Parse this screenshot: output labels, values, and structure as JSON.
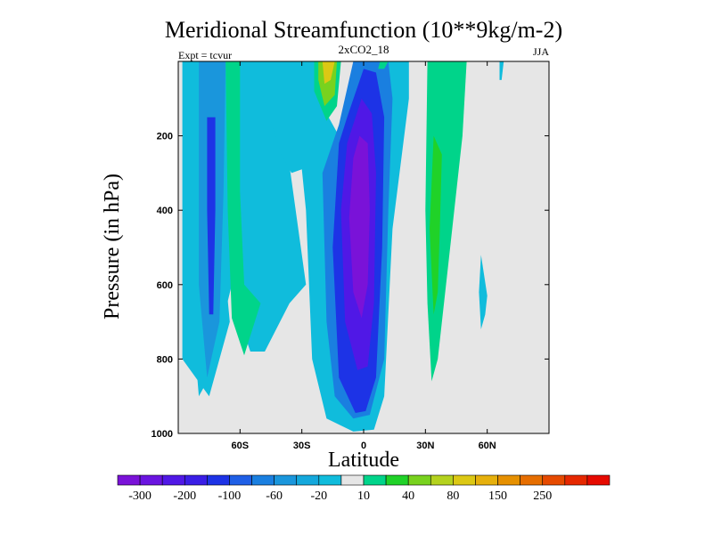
{
  "chart_data": {
    "type": "contour",
    "title": "Meridional Streamfunction (10**9kg/m-2)",
    "subtitle_center": "2xCO2_18",
    "subtitle_left": "Expt = tcvur",
    "subtitle_right": "JJA",
    "xlabel": "Latitude",
    "ylabel": "Pressure (in hPa)",
    "xlim": [
      -90,
      90
    ],
    "ylim": [
      1000,
      0
    ],
    "x_ticks": [
      {
        "value": -60,
        "label": "60S"
      },
      {
        "value": -30,
        "label": "30S"
      },
      {
        "value": 0,
        "label": "0"
      },
      {
        "value": 30,
        "label": "30N"
      },
      {
        "value": 60,
        "label": "60N"
      }
    ],
    "y_ticks": [
      {
        "value": 200,
        "label": "200"
      },
      {
        "value": 400,
        "label": "400"
      },
      {
        "value": 600,
        "label": "600"
      },
      {
        "value": 800,
        "label": "800"
      },
      {
        "value": 1000,
        "label": "1000"
      }
    ],
    "background_color": "#e6e6e6",
    "colorbar": {
      "colors": [
        "#7a12d8",
        "#6a14e0",
        "#5018e6",
        "#3a1ee6",
        "#1d33e6",
        "#1f5fe6",
        "#1a7fe0",
        "#1a96dc",
        "#14a8dc",
        "#10bcdc",
        "#e6e6e6",
        "#00d48a",
        "#20d228",
        "#78d21e",
        "#b4d21e",
        "#dcc814",
        "#e6b00c",
        "#e69000",
        "#e66e00",
        "#e64a00",
        "#e62800",
        "#e60a00"
      ],
      "labels": [
        "-300",
        "-200",
        "-100",
        "-60",
        "-20",
        "10",
        "40",
        "80",
        "150",
        "250"
      ],
      "label_after_index": [
        0,
        2,
        4,
        6,
        8,
        10,
        12,
        14,
        16,
        18
      ]
    },
    "contour_regions": [
      {
        "level": -20,
        "color": "#10bcdc",
        "points": [
          [
            -82,
            0
          ],
          [
            -62,
            0
          ],
          [
            -64,
            600
          ],
          [
            -75,
            850
          ],
          [
            -80,
            900
          ],
          [
            -83,
            700
          ]
        ]
      },
      {
        "level": -20,
        "color": "#10bcdc",
        "points": [
          [
            -88,
            0
          ],
          [
            -80,
            0
          ],
          [
            -77,
            150
          ],
          [
            -70,
            400
          ],
          [
            -65,
            700
          ],
          [
            -75,
            900
          ],
          [
            -88,
            800
          ]
        ]
      },
      {
        "level": -60,
        "color": "#1a96dc",
        "points": [
          [
            -80,
            0
          ],
          [
            -67,
            0
          ],
          [
            -68,
            350
          ],
          [
            -70,
            700
          ],
          [
            -76,
            850
          ],
          [
            -80,
            600
          ]
        ]
      },
      {
        "level": -100,
        "color": "#1d33e6",
        "points": [
          [
            -76,
            150
          ],
          [
            -72,
            150
          ],
          [
            -72,
            400
          ],
          [
            -73,
            680
          ],
          [
            -75,
            680
          ],
          [
            -76,
            400
          ]
        ]
      },
      {
        "level": -20,
        "color": "#10bcdc",
        "points": [
          [
            -65,
            0
          ],
          [
            -45,
            0
          ],
          [
            -38,
            200
          ],
          [
            -28,
            600
          ],
          [
            -36,
            650
          ],
          [
            -48,
            780
          ],
          [
            -55,
            780
          ],
          [
            -63,
            650
          ]
        ]
      },
      {
        "level": -20,
        "color": "#10bcdc",
        "points": [
          [
            -54,
            0
          ],
          [
            -20,
            0
          ],
          [
            -17,
            150
          ],
          [
            -12,
            200
          ],
          [
            2,
            0
          ],
          [
            22,
            0
          ],
          [
            22,
            100
          ],
          [
            14,
            450
          ],
          [
            10,
            900
          ],
          [
            5,
            990
          ],
          [
            -5,
            995
          ],
          [
            -18,
            960
          ],
          [
            -25,
            800
          ],
          [
            -28,
            400
          ],
          [
            -30,
            290
          ],
          [
            -35,
            300
          ],
          [
            -40,
            250
          ]
        ]
      },
      {
        "level": -60,
        "color": "#1a7fe0",
        "points": [
          [
            -5,
            0
          ],
          [
            12,
            0
          ],
          [
            14,
            100
          ],
          [
            12,
            400
          ],
          [
            10,
            800
          ],
          [
            3,
            950
          ],
          [
            -5,
            960
          ],
          [
            -14,
            900
          ],
          [
            -18,
            700
          ],
          [
            -20,
            300
          ],
          [
            -12,
            170
          ]
        ]
      },
      {
        "level": -100,
        "color": "#1d33e6",
        "points": [
          [
            0,
            20
          ],
          [
            6,
            30
          ],
          [
            10,
            150
          ],
          [
            9,
            500
          ],
          [
            6,
            850
          ],
          [
            1,
            940
          ],
          [
            -4,
            945
          ],
          [
            -12,
            850
          ],
          [
            -15,
            500
          ],
          [
            -12,
            220
          ],
          [
            -8,
            150
          ]
        ]
      },
      {
        "level": -200,
        "color": "#5018e6",
        "points": [
          [
            -1,
            100
          ],
          [
            4,
            140
          ],
          [
            6,
            300
          ],
          [
            5,
            650
          ],
          [
            2,
            820
          ],
          [
            -3,
            830
          ],
          [
            -9,
            700
          ],
          [
            -11,
            400
          ],
          [
            -8,
            220
          ]
        ]
      },
      {
        "level": -300,
        "color": "#7a12d8",
        "points": [
          [
            -2,
            200
          ],
          [
            2,
            220
          ],
          [
            3,
            400
          ],
          [
            2,
            600
          ],
          [
            -1,
            690
          ],
          [
            -5,
            620
          ],
          [
            -7,
            420
          ],
          [
            -5,
            260
          ]
        ]
      },
      {
        "level": 10,
        "color": "#00d48a",
        "points": [
          [
            -67,
            0
          ],
          [
            -60,
            0
          ],
          [
            -60,
            350
          ],
          [
            -58,
            600
          ],
          [
            -50,
            650
          ],
          [
            -58,
            790
          ],
          [
            -64,
            690
          ],
          [
            -66,
            400
          ]
        ]
      },
      {
        "level": 10,
        "color": "#00d48a",
        "points": [
          [
            -24,
            0
          ],
          [
            -11,
            0
          ],
          [
            -13,
            120
          ],
          [
            -18,
            160
          ],
          [
            -24,
            80
          ]
        ]
      },
      {
        "level": 40,
        "color": "#78d21e",
        "points": [
          [
            -22,
            0
          ],
          [
            -13,
            0
          ],
          [
            -14,
            90
          ],
          [
            -19,
            120
          ],
          [
            -22,
            50
          ]
        ]
      },
      {
        "level": 80,
        "color": "#dcc814",
        "points": [
          [
            -20,
            0
          ],
          [
            -14,
            0
          ],
          [
            -16,
            50
          ],
          [
            -19,
            60
          ]
        ]
      },
      {
        "level": 10,
        "color": "#00d48a",
        "points": [
          [
            8,
            0
          ],
          [
            12,
            0
          ],
          [
            10,
            20
          ],
          [
            7,
            20
          ]
        ]
      },
      {
        "level": 10,
        "color": "#00d48a",
        "points": [
          [
            31,
            0
          ],
          [
            50,
            0
          ],
          [
            48,
            200
          ],
          [
            42,
            500
          ],
          [
            36,
            800
          ],
          [
            33,
            860
          ],
          [
            31,
            650
          ],
          [
            30,
            400
          ]
        ]
      },
      {
        "level": 40,
        "color": "#20d228",
        "points": [
          [
            34,
            200
          ],
          [
            38,
            250
          ],
          [
            37,
            450
          ],
          [
            36,
            620
          ],
          [
            34,
            680
          ],
          [
            32,
            450
          ]
        ]
      },
      {
        "level": -20,
        "color": "#10bcdc",
        "points": [
          [
            66,
            0
          ],
          [
            68,
            0
          ],
          [
            67,
            50
          ],
          [
            66,
            50
          ]
        ]
      },
      {
        "level": -20,
        "color": "#10bcdc",
        "points": [
          [
            57,
            520
          ],
          [
            60,
            630
          ],
          [
            59,
            680
          ],
          [
            57,
            720
          ],
          [
            56,
            620
          ]
        ]
      }
    ]
  }
}
